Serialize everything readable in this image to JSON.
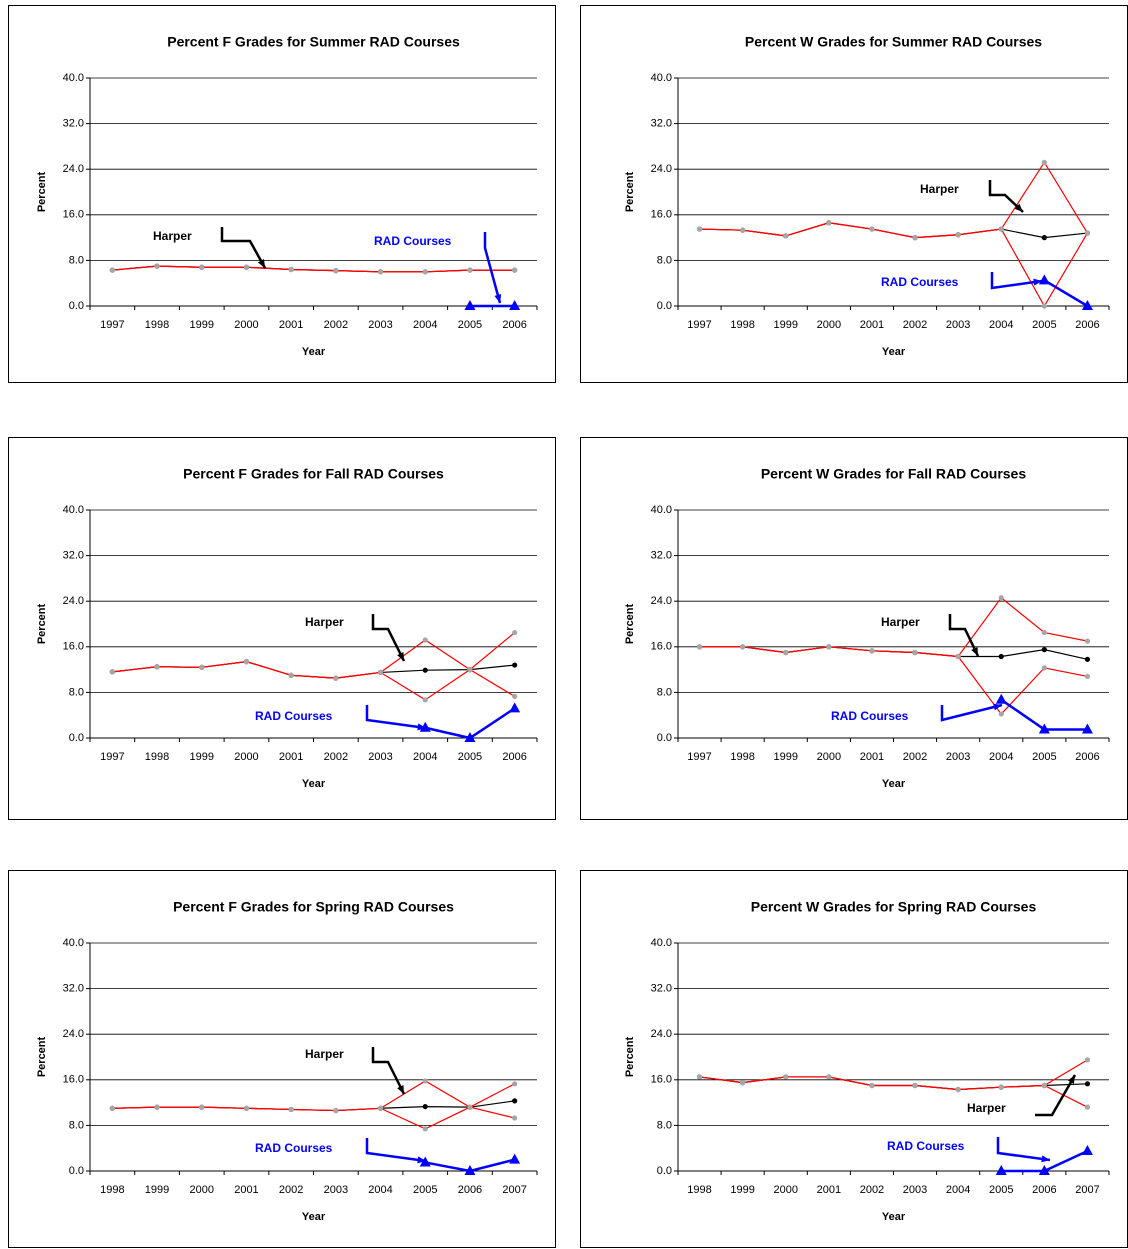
{
  "chart_data": [
    {
      "type": "line",
      "title": "Percent F Grades for Summer RAD Courses",
      "xlabel": "Year",
      "ylabel": "Percent",
      "categories": [
        "1997",
        "1998",
        "1999",
        "2000",
        "2001",
        "2002",
        "2003",
        "2004",
        "2005",
        "2006"
      ],
      "ylim": [
        0,
        40
      ],
      "yticks": [
        {
          "value": 0,
          "label": "0.0"
        },
        {
          "value": 8,
          "label": "8.0"
        },
        {
          "value": 16,
          "label": "16.0"
        },
        {
          "value": 24,
          "label": "24.0"
        },
        {
          "value": 32,
          "label": "32.0"
        },
        {
          "value": 40,
          "label": "40.0"
        }
      ],
      "grid": true,
      "series": [
        {
          "name": "Harper",
          "color": "#000000",
          "marker": "circle",
          "values": [
            6.3,
            7.0,
            6.8,
            6.8,
            6.4,
            6.2,
            6.0,
            6.0,
            6.3,
            6.3
          ]
        },
        {
          "color": "#ff0000",
          "marker": "circle",
          "marker_color": "#a6a6a6",
          "values": [
            6.3,
            7.0,
            6.8,
            6.8,
            6.4,
            6.2,
            6.0,
            6.0,
            6.3,
            6.3
          ]
        },
        {
          "color": "#ff0000",
          "marker": "circle",
          "marker_color": "#a6a6a6",
          "values": [
            6.3,
            7.0,
            6.8,
            6.8,
            6.4,
            6.2,
            6.0,
            6.0,
            6.3,
            6.3
          ]
        },
        {
          "name": "RAD Courses",
          "color": "#0000ff",
          "marker": "triangle",
          "values": [
            null,
            null,
            null,
            null,
            null,
            null,
            null,
            null,
            0,
            0
          ]
        }
      ]
    },
    {
      "type": "line",
      "title": "Percent W Grades for Summer RAD Courses",
      "xlabel": "Year",
      "ylabel": "Percent",
      "categories": [
        "1997",
        "1998",
        "1999",
        "2000",
        "2001",
        "2002",
        "2003",
        "2004",
        "2005",
        "2006"
      ],
      "ylim": [
        0,
        40
      ],
      "yticks": [
        {
          "value": 0,
          "label": "0.0"
        },
        {
          "value": 8,
          "label": "8.0"
        },
        {
          "value": 16,
          "label": "16.0"
        },
        {
          "value": 24,
          "label": "24.0"
        },
        {
          "value": 32,
          "label": "32.0"
        },
        {
          "value": 40,
          "label": "40.0"
        }
      ],
      "grid": true,
      "series": [
        {
          "name": "Harper",
          "color": "#000000",
          "marker": "circle",
          "values": [
            13.5,
            13.3,
            12.3,
            14.6,
            13.5,
            12.0,
            12.5,
            13.5,
            12.0,
            12.8
          ]
        },
        {
          "color": "#ff0000",
          "marker": "circle",
          "marker_color": "#a6a6a6",
          "values": [
            13.5,
            13.3,
            12.3,
            14.6,
            13.5,
            12.0,
            12.5,
            13.5,
            25.2,
            12.8
          ]
        },
        {
          "color": "#ff0000",
          "marker": "circle",
          "marker_color": "#a6a6a6",
          "values": [
            13.5,
            13.3,
            12.3,
            14.6,
            13.5,
            12.0,
            12.5,
            13.5,
            0,
            12.8
          ]
        },
        {
          "name": "RAD Courses",
          "color": "#0000ff",
          "marker": "triangle",
          "values": [
            null,
            null,
            null,
            null,
            null,
            null,
            null,
            null,
            4.5,
            0
          ]
        }
      ]
    },
    {
      "type": "line",
      "title": "Percent F Grades for Fall RAD Courses",
      "xlabel": "Year",
      "ylabel": "Percent",
      "categories": [
        "1997",
        "1998",
        "1999",
        "2000",
        "2001",
        "2002",
        "2003",
        "2004",
        "2005",
        "2006"
      ],
      "ylim": [
        0,
        40
      ],
      "yticks": [
        {
          "value": 0,
          "label": "0.0"
        },
        {
          "value": 8,
          "label": "8.0"
        },
        {
          "value": 16,
          "label": "16.0"
        },
        {
          "value": 24,
          "label": "24.0"
        },
        {
          "value": 32,
          "label": "32.0"
        },
        {
          "value": 40,
          "label": "40.0"
        }
      ],
      "grid": true,
      "series": [
        {
          "name": "Harper",
          "color": "#000000",
          "marker": "circle",
          "values": [
            11.6,
            12.5,
            12.4,
            13.4,
            11.0,
            10.5,
            11.5,
            11.9,
            12.0,
            12.8
          ]
        },
        {
          "color": "#ff0000",
          "marker": "circle",
          "marker_color": "#a6a6a6",
          "values": [
            11.6,
            12.5,
            12.4,
            13.4,
            11.0,
            10.5,
            11.5,
            17.2,
            12.0,
            18.5
          ]
        },
        {
          "color": "#ff0000",
          "marker": "circle",
          "marker_color": "#a6a6a6",
          "values": [
            11.6,
            12.5,
            12.4,
            13.4,
            11.0,
            10.5,
            11.5,
            6.7,
            12.0,
            7.3
          ]
        },
        {
          "name": "RAD Courses",
          "color": "#0000ff",
          "marker": "triangle",
          "values": [
            null,
            null,
            null,
            null,
            null,
            null,
            null,
            1.8,
            0,
            5.2
          ]
        }
      ]
    },
    {
      "type": "line",
      "title": "Percent W Grades for Fall RAD Courses",
      "xlabel": "Year",
      "ylabel": "Percent",
      "categories": [
        "1997",
        "1998",
        "1999",
        "2000",
        "2001",
        "2002",
        "2003",
        "2004",
        "2005",
        "2006"
      ],
      "ylim": [
        0,
        40
      ],
      "yticks": [
        {
          "value": 0,
          "label": "0.0"
        },
        {
          "value": 8,
          "label": "8.0"
        },
        {
          "value": 16,
          "label": "16.0"
        },
        {
          "value": 24,
          "label": "24.0"
        },
        {
          "value": 32,
          "label": "32.0"
        },
        {
          "value": 40,
          "label": "40.0"
        }
      ],
      "grid": true,
      "series": [
        {
          "name": "Harper",
          "color": "#000000",
          "marker": "circle",
          "values": [
            16.0,
            16.0,
            15.0,
            16.0,
            15.3,
            15.0,
            14.3,
            14.3,
            15.5,
            13.8
          ]
        },
        {
          "color": "#ff0000",
          "marker": "circle",
          "marker_color": "#a6a6a6",
          "values": [
            16.0,
            16.0,
            15.0,
            16.0,
            15.3,
            15.0,
            14.3,
            24.6,
            18.5,
            17.0
          ]
        },
        {
          "color": "#ff0000",
          "marker": "circle",
          "marker_color": "#a6a6a6",
          "values": [
            16.0,
            16.0,
            15.0,
            16.0,
            15.3,
            15.0,
            14.3,
            4.2,
            12.3,
            10.8
          ]
        },
        {
          "name": "RAD Courses",
          "color": "#0000ff",
          "marker": "triangle",
          "values": [
            null,
            null,
            null,
            null,
            null,
            null,
            null,
            6.7,
            1.5,
            1.5
          ]
        }
      ]
    },
    {
      "type": "line",
      "title": "Percent F Grades for Spring RAD Courses",
      "xlabel": "Year",
      "ylabel": "Percent",
      "categories": [
        "1998",
        "1999",
        "2000",
        "2001",
        "2002",
        "2003",
        "2004",
        "2005",
        "2006",
        "2007"
      ],
      "ylim": [
        0,
        40
      ],
      "yticks": [
        {
          "value": 0,
          "label": "0.0"
        },
        {
          "value": 8,
          "label": "8.0"
        },
        {
          "value": 16,
          "label": "16.0"
        },
        {
          "value": 24,
          "label": "24.0"
        },
        {
          "value": 32,
          "label": "32.0"
        },
        {
          "value": 40,
          "label": "40.0"
        }
      ],
      "grid": true,
      "series": [
        {
          "name": "Harper",
          "color": "#000000",
          "marker": "circle",
          "values": [
            11.0,
            11.2,
            11.2,
            11.0,
            10.8,
            10.6,
            11.0,
            11.3,
            11.2,
            12.3
          ]
        },
        {
          "color": "#ff0000",
          "marker": "circle",
          "marker_color": "#a6a6a6",
          "values": [
            11.0,
            11.2,
            11.2,
            11.0,
            10.8,
            10.6,
            11.0,
            15.8,
            11.2,
            15.3
          ]
        },
        {
          "color": "#ff0000",
          "marker": "circle",
          "marker_color": "#a6a6a6",
          "values": [
            11.0,
            11.2,
            11.2,
            11.0,
            10.8,
            10.6,
            11.0,
            7.4,
            11.2,
            9.3
          ]
        },
        {
          "name": "RAD Courses",
          "color": "#0000ff",
          "marker": "triangle",
          "values": [
            null,
            null,
            null,
            null,
            null,
            null,
            null,
            1.5,
            0,
            2.0
          ]
        }
      ]
    },
    {
      "type": "line",
      "title": "Percent W Grades for Spring RAD Courses",
      "xlabel": "Year",
      "ylabel": "Percent",
      "categories": [
        "1998",
        "1999",
        "2000",
        "2001",
        "2002",
        "2003",
        "2004",
        "2005",
        "2006",
        "2007"
      ],
      "ylim": [
        0,
        40
      ],
      "yticks": [
        {
          "value": 0,
          "label": "0.0"
        },
        {
          "value": 8,
          "label": "8.0"
        },
        {
          "value": 16,
          "label": "16.0"
        },
        {
          "value": 24,
          "label": "24.0"
        },
        {
          "value": 32,
          "label": "32.0"
        },
        {
          "value": 40,
          "label": "40.0"
        }
      ],
      "grid": true,
      "series": [
        {
          "name": "Harper",
          "color": "#000000",
          "marker": "circle",
          "values": [
            16.5,
            15.5,
            16.5,
            16.5,
            15.0,
            15.0,
            14.3,
            14.7,
            15.0,
            15.3
          ]
        },
        {
          "color": "#ff0000",
          "marker": "circle",
          "marker_color": "#a6a6a6",
          "values": [
            16.5,
            15.5,
            16.5,
            16.5,
            15.0,
            15.0,
            14.3,
            14.7,
            15.0,
            19.5
          ]
        },
        {
          "color": "#ff0000",
          "marker": "circle",
          "marker_color": "#a6a6a6",
          "values": [
            16.5,
            15.5,
            16.5,
            16.5,
            15.0,
            15.0,
            14.3,
            14.7,
            15.0,
            11.2
          ]
        },
        {
          "name": "RAD Courses",
          "color": "#0000ff",
          "marker": "triangle",
          "values": [
            null,
            null,
            null,
            null,
            null,
            null,
            null,
            0,
            0,
            3.5
          ]
        }
      ]
    }
  ]
}
